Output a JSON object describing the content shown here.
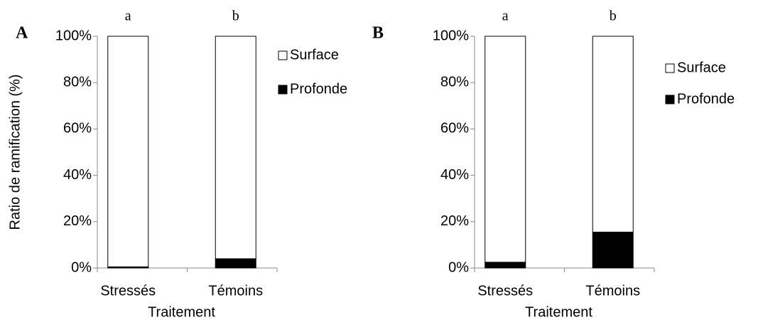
{
  "chart_data": [
    {
      "type": "bar",
      "stacked": true,
      "panel_label": "A",
      "y_label": "Ratio de ramification (%)",
      "x_label": "Traitement",
      "categories": [
        "Stressés",
        "Témoins"
      ],
      "annotations": [
        "a",
        "b"
      ],
      "series": [
        {
          "name": "Profonde",
          "color": "#000000",
          "values": [
            0.5,
            4
          ]
        },
        {
          "name": "Surface",
          "color": "#ffffff",
          "values": [
            99.5,
            96
          ]
        }
      ],
      "ylim": [
        0,
        100
      ],
      "yticks": [
        {
          "value": 0,
          "label": "0%"
        },
        {
          "value": 20,
          "label": "20%"
        },
        {
          "value": 40,
          "label": "40%"
        },
        {
          "value": 60,
          "label": "60%"
        },
        {
          "value": 80,
          "label": "80%"
        },
        {
          "value": 100,
          "label": "100%"
        }
      ],
      "grid": false
    },
    {
      "type": "bar",
      "stacked": true,
      "panel_label": "B",
      "x_label": "Traitement",
      "categories": [
        "Stressés",
        "Témoins"
      ],
      "annotations": [
        "a",
        "b"
      ],
      "series": [
        {
          "name": "Profonde",
          "color": "#000000",
          "values": [
            2.5,
            15.5
          ]
        },
        {
          "name": "Surface",
          "color": "#ffffff",
          "values": [
            97.5,
            84.5
          ]
        }
      ],
      "ylim": [
        0,
        100
      ],
      "yticks": [
        {
          "value": 0,
          "label": "0%"
        },
        {
          "value": 20,
          "label": "20%"
        },
        {
          "value": 40,
          "label": "40%"
        },
        {
          "value": 60,
          "label": "60%"
        },
        {
          "value": 80,
          "label": "80%"
        },
        {
          "value": 100,
          "label": "100%"
        }
      ],
      "grid": false
    }
  ]
}
